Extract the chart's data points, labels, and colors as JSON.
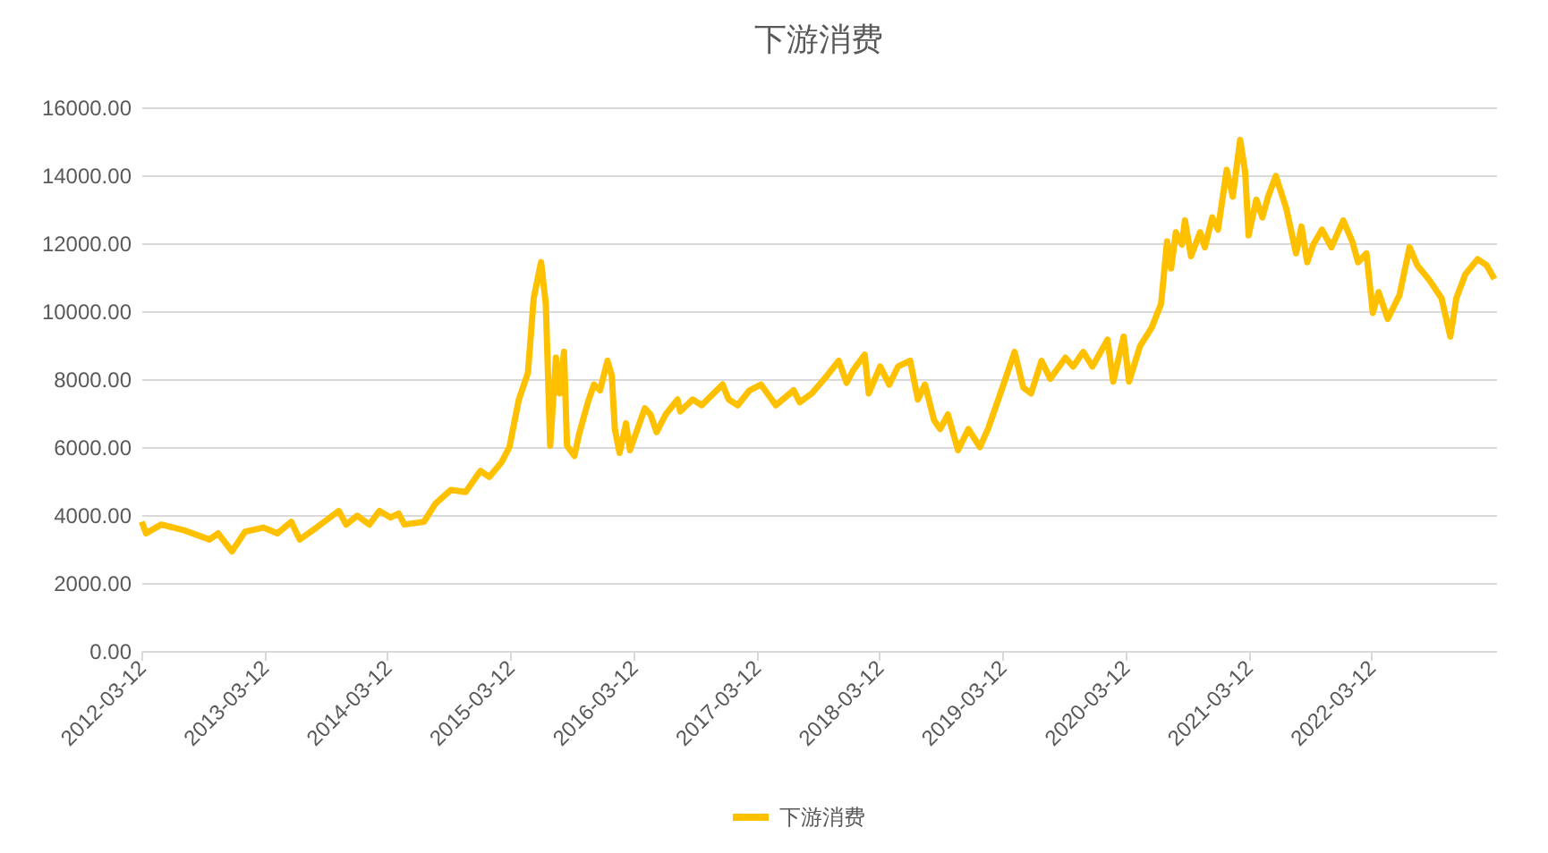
{
  "chart_data": {
    "type": "line",
    "title": "下游消费",
    "x": [
      "2012-03-13",
      "2012-03-26",
      "2012-05-10",
      "2012-07-20",
      "2012-09-30",
      "2012-10-26",
      "2012-12-06",
      "2013-01-14",
      "2013-03-09",
      "2013-04-20",
      "2013-05-31",
      "2013-06-25",
      "2013-08-14",
      "2013-10-19",
      "2013-11-10",
      "2013-12-13",
      "2014-01-18",
      "2014-02-17",
      "2014-03-22",
      "2014-04-15",
      "2014-05-02",
      "2014-06-29",
      "2014-08-02",
      "2014-09-17",
      "2014-10-31",
      "2014-12-14",
      "2015-01-09",
      "2015-02-15",
      "2015-03-10",
      "2015-04-07",
      "2015-05-04",
      "2015-05-21",
      "2015-06-12",
      "2015-06-26",
      "2015-07-09",
      "2015-07-26",
      "2015-08-06",
      "2015-08-19",
      "2015-08-28",
      "2015-09-19",
      "2015-10-02",
      "2015-10-29",
      "2015-11-16",
      "2015-12-04",
      "2015-12-26",
      "2016-01-08",
      "2016-01-17",
      "2016-01-31",
      "2016-02-19",
      "2016-03-02",
      "2016-04-15",
      "2016-05-02",
      "2016-05-20",
      "2016-06-16",
      "2016-07-21",
      "2016-07-29",
      "2016-09-04",
      "2016-10-01",
      "2016-12-02",
      "2016-12-20",
      "2017-01-16",
      "2017-02-20",
      "2017-03-26",
      "2017-05-09",
      "2017-07-01",
      "2017-07-19",
      "2017-08-24",
      "2017-10-08",
      "2017-11-12",
      "2017-12-05",
      "2017-12-26",
      "2018-01-28",
      "2018-02-09",
      "2018-03-15",
      "2018-04-11",
      "2018-05-07",
      "2018-06-12",
      "2018-07-05",
      "2018-07-26",
      "2018-08-22",
      "2018-09-09",
      "2018-10-02",
      "2018-11-01",
      "2018-12-02",
      "2019-01-05",
      "2019-01-29",
      "2019-03-13",
      "2019-04-18",
      "2019-05-14",
      "2019-06-06",
      "2019-07-07",
      "2019-08-02",
      "2019-09-16",
      "2019-10-09",
      "2019-11-08",
      "2019-12-05",
      "2020-01-19",
      "2020-02-05",
      "2020-03-07",
      "2020-03-23",
      "2020-04-25",
      "2020-05-29",
      "2020-06-26",
      "2020-07-14",
      "2020-07-26",
      "2020-08-09",
      "2020-08-27",
      "2020-09-05",
      "2020-09-23",
      "2020-10-20",
      "2020-11-03",
      "2020-11-25",
      "2020-12-12",
      "2021-01-07",
      "2021-01-25",
      "2021-02-16",
      "2021-03-03",
      "2021-03-13",
      "2021-04-05",
      "2021-04-23",
      "2021-05-10",
      "2021-06-02",
      "2021-07-03",
      "2021-08-01",
      "2021-08-17",
      "2021-09-03",
      "2021-09-21",
      "2021-10-17",
      "2021-11-14",
      "2021-12-19",
      "2022-01-15",
      "2022-02-01",
      "2022-02-26",
      "2022-03-17",
      "2022-04-03",
      "2022-04-30",
      "2022-06-04",
      "2022-07-04",
      "2022-07-27",
      "2022-09-01",
      "2022-10-07",
      "2022-11-02",
      "2022-11-20",
      "2022-12-17",
      "2023-01-22",
      "2023-02-18",
      "2023-03-13"
    ],
    "series": [
      {
        "name": "下游消费",
        "color": "#ffc000",
        "values": [
          3800,
          3460,
          3720,
          3540,
          3280,
          3460,
          2930,
          3510,
          3630,
          3460,
          3800,
          3280,
          3630,
          4120,
          3720,
          3980,
          3720,
          4120,
          3930,
          4040,
          3720,
          3800,
          4330,
          4740,
          4680,
          5300,
          5120,
          5560,
          6000,
          7400,
          8190,
          10380,
          11440,
          10210,
          6040,
          8630,
          7580,
          8800,
          6040,
          5740,
          6350,
          7320,
          7840,
          7670,
          8540,
          8100,
          6530,
          5830,
          6700,
          5910,
          7140,
          6960,
          6440,
          6960,
          7400,
          7050,
          7400,
          7230,
          7840,
          7400,
          7230,
          7670,
          7840,
          7230,
          7670,
          7320,
          7580,
          8100,
          8540,
          7890,
          8280,
          8720,
          7580,
          8370,
          7840,
          8370,
          8540,
          7400,
          7840,
          6790,
          6530,
          6960,
          5910,
          6530,
          6000,
          6530,
          7750,
          8800,
          7750,
          7580,
          8540,
          8010,
          8630,
          8370,
          8800,
          8370,
          9160,
          7930,
          9250,
          7930,
          8980,
          9510,
          10210,
          12050,
          11260,
          12320,
          11960,
          12670,
          11620,
          12320,
          11880,
          12760,
          12400,
          14160,
          13370,
          15040,
          14070,
          12230,
          13280,
          12760,
          13370,
          13980,
          13020,
          11700,
          12490,
          11440,
          11960,
          12400,
          11880,
          12670,
          12050,
          11440,
          11700,
          9950,
          10560,
          9770,
          10470,
          11880,
          11350,
          10910,
          10380,
          9250,
          10380,
          11090,
          11530,
          11350,
          10950
        ]
      }
    ],
    "xlim": [
      "2012-03-12",
      "2023-03-18"
    ],
    "xticks": [
      "2012-03-12",
      "2013-03-12",
      "2014-03-12",
      "2015-03-12",
      "2016-03-12",
      "2017-03-12",
      "2018-03-12",
      "2019-03-12",
      "2020-03-12",
      "2021-03-12",
      "2022-03-12"
    ],
    "ylim": [
      0,
      16000
    ],
    "yticks": [
      {
        "value": 0,
        "label": "0.00"
      },
      {
        "value": 2000,
        "label": "2000.00"
      },
      {
        "value": 4000,
        "label": "4000.00"
      },
      {
        "value": 6000,
        "label": "6000.00"
      },
      {
        "value": 8000,
        "label": "8000.00"
      },
      {
        "value": 10000,
        "label": "10000.00"
      },
      {
        "value": 12000,
        "label": "12000.00"
      },
      {
        "value": 14000,
        "label": "14000.00"
      },
      {
        "value": 16000,
        "label": "16000.00"
      }
    ],
    "grid": "y",
    "legend": "bottom"
  }
}
